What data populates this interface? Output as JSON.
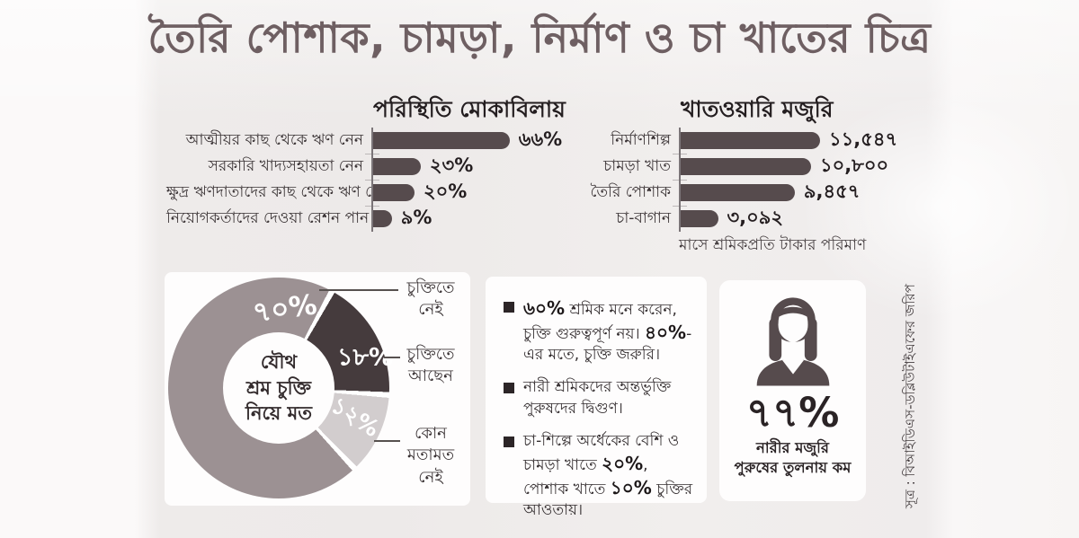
{
  "title": "তৈরি পোশাক, চামড়া, নির্মাণ ও চা খাতের চিত্র",
  "coping_chart": {
    "title": "পরিস্থিতি মোকাবিলায়",
    "unit": "%",
    "rows": [
      {
        "label": "আত্মীয়র কাছ থেকে ঋণ নেন",
        "value": 66,
        "value_label": "৬৬%"
      },
      {
        "label": "সরকারি খাদ্যসহায়তা নেন",
        "value": 23,
        "value_label": "২৩%"
      },
      {
        "label": "ক্ষুদ্র ঋণদাতাদের কাছ থেকে ঋণ নেন",
        "value": 20,
        "value_label": "২০%"
      },
      {
        "label": "নিয়োগকর্তাদের দেওয়া রেশন পান",
        "value": 9,
        "value_label": "৯%"
      }
    ]
  },
  "wage_chart": {
    "title": "খাতওয়ারি মজুরি",
    "footnote": "মাসে শ্রমিকপ্রতি টাকার পরিমাণ",
    "rows": [
      {
        "label": "নির্মাণশিল্প",
        "value": 11547,
        "value_label": "১১,৫৪৭"
      },
      {
        "label": "চামড়া খাত",
        "value": 10800,
        "value_label": "১০,৮০০"
      },
      {
        "label": "তৈরি পোশাক",
        "value": 9457,
        "value_label": "৯,৪৫৭"
      },
      {
        "label": "চা-বাগান",
        "value": 3092,
        "value_label": "৩,০৯২"
      }
    ]
  },
  "donut": {
    "center_label": {
      "line1": "যৌথ",
      "line2": "শ্রম চুক্তি",
      "line3": "নিয়ে মত"
    },
    "slices": [
      {
        "label": "চুক্তিতে নেই",
        "value": 70,
        "value_label": "৭০%",
        "color": "#9c9193"
      },
      {
        "label": "চুক্তিতে আছেন",
        "value": 18,
        "value_label": "১৮%",
        "color": "#453b3d"
      },
      {
        "label": "কোন মতামত নেই",
        "value": 12,
        "value_label": "১২%",
        "color": "#d2cdce"
      }
    ]
  },
  "bullets": [
    {
      "segments": [
        {
          "text": "৬০%",
          "bold": true
        },
        {
          "text": " শ্রমিক মনে করেন, চুক্তি গুরুত্বপূর্ণ নয়। ",
          "bold": false
        },
        {
          "text": "৪০%",
          "bold": true
        },
        {
          "text": "-এর মতে, চুক্তি জরুরি।",
          "bold": false
        }
      ]
    },
    {
      "segments": [
        {
          "text": "নারী শ্রমিকদের অন্তর্ভুক্তি পুরুষদের দ্বিগুণ।",
          "bold": false
        }
      ]
    },
    {
      "segments": [
        {
          "text": "চা-শিল্পে অর্ধেকের বেশি ও চামড়া খাতে ",
          "bold": false
        },
        {
          "text": "২০%",
          "bold": true
        },
        {
          "text": ", পোশাক খাতে ",
          "bold": false
        },
        {
          "text": "১০%",
          "bold": true
        },
        {
          "text": " চুক্তির আওতায়।",
          "bold": false
        }
      ]
    }
  ],
  "women_stat": {
    "value": 77,
    "value_label": "৭৭%",
    "caption_line1": "নারীর মজুরি",
    "caption_line2": "পুরুষের তুলনায় কম"
  },
  "source": "সূত্র : বিআইডিএস-ডব্লিউটাইএফের জরিপ",
  "colors": {
    "bar": "#564b4d",
    "ink_dark": "#241e20",
    "ink": "#393234",
    "title": "#6e5f62",
    "donut_gray": "#9c9193",
    "donut_dark": "#453b3d",
    "donut_light": "#d2cdce",
    "card": "#fefdfd",
    "background": "#edeae9"
  },
  "chart_data": [
    {
      "type": "bar",
      "orientation": "horizontal",
      "title": "পরিস্থিতি মোকাবিলায়",
      "categories": [
        "আত্মীয়র কাছ থেকে ঋণ নেন",
        "সরকারি খাদ্যসহায়তা নেন",
        "ক্ষুদ্র ঋণদাতাদের কাছ থেকে ঋণ নেন",
        "নিয়োগকর্তাদের দেওয়া রেশন পান"
      ],
      "values": [
        66,
        23,
        20,
        9
      ],
      "value_labels": [
        "৬৬%",
        "২৩%",
        "২০%",
        "৯%"
      ],
      "unit": "%",
      "xlim": [
        0,
        70
      ],
      "grid": false,
      "legend": false
    },
    {
      "type": "bar",
      "orientation": "horizontal",
      "title": "খাতওয়ারি মজুরি",
      "categories": [
        "নির্মাণশিল্প",
        "চামড়া খাত",
        "তৈরি পোশাক",
        "চা-বাগান"
      ],
      "values": [
        11547,
        10800,
        9457,
        3092
      ],
      "value_labels": [
        "১১,৫৪৭",
        "১০,৮০০",
        "৯,৪৫৭",
        "৩,০৯২"
      ],
      "unit": "টাকা প্রতি মাসে",
      "note": "মাসে শ্রমিকপ্রতি টাকার পরিমাণ",
      "xlim": [
        0,
        12000
      ],
      "grid": false,
      "legend": false
    },
    {
      "type": "pie",
      "donut": true,
      "title": "যৌথ শ্রম চুক্তি নিয়ে মত",
      "categories": [
        "চুক্তিতে নেই",
        "চুক্তিতে আছেন",
        "কোন মতামত নেই"
      ],
      "values": [
        70,
        18,
        12
      ],
      "value_labels": [
        "৭০%",
        "১৮%",
        "১২%"
      ],
      "unit": "%",
      "legend": "right-callouts"
    },
    {
      "type": "stat",
      "title": "নারীর মজুরি পুরুষের তুলনায় কম",
      "values": [
        77
      ],
      "value_labels": [
        "৭৭%"
      ],
      "unit": "%"
    }
  ]
}
